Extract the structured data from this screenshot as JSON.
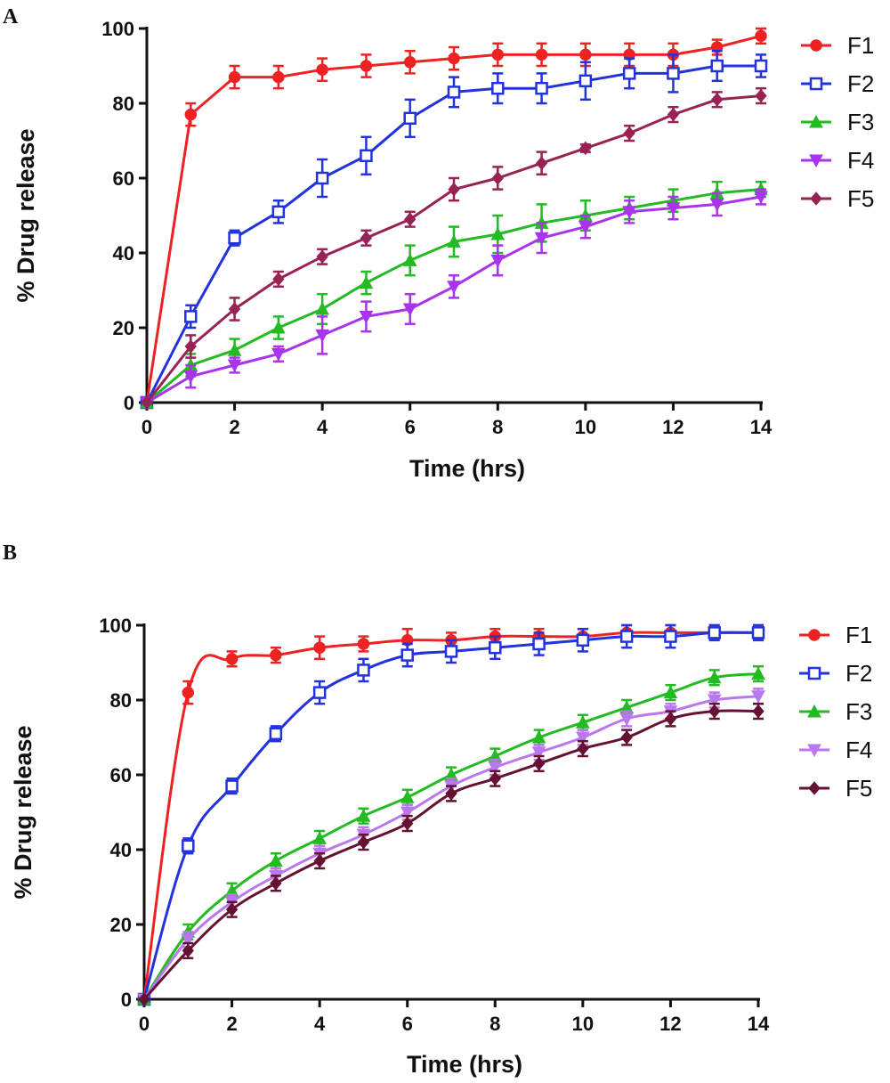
{
  "chart_data": [
    {
      "type": "line",
      "panel_label": "A",
      "xlabel": "Time (hrs)",
      "ylabel": "% Drug release",
      "xlim": [
        0,
        14
      ],
      "ylim": [
        0,
        100
      ],
      "xticks": [
        0,
        2,
        4,
        6,
        8,
        10,
        12,
        14
      ],
      "yticks": [
        0,
        20,
        40,
        60,
        80,
        100
      ],
      "legend_position": "right",
      "x": [
        0,
        1,
        2,
        3,
        4,
        5,
        6,
        7,
        8,
        9,
        10,
        11,
        12,
        13,
        14
      ],
      "series": [
        {
          "name": "F1",
          "color": "#ee2222",
          "marker": "circle-filled",
          "values": [
            0,
            77,
            87,
            87,
            89,
            90,
            91,
            92,
            93,
            93,
            93,
            93,
            93,
            95,
            98
          ],
          "errors": [
            0,
            3,
            3,
            3,
            3,
            3,
            3,
            3,
            3,
            3,
            3,
            3,
            3,
            2,
            2
          ]
        },
        {
          "name": "F2",
          "color": "#2233dd",
          "marker": "square-open",
          "values": [
            0,
            23,
            44,
            51,
            60,
            66,
            76,
            83,
            84,
            84,
            86,
            88,
            88,
            90,
            90
          ],
          "errors": [
            0,
            3,
            2,
            3,
            5,
            5,
            5,
            4,
            4,
            4,
            5,
            4,
            5,
            4,
            3
          ]
        },
        {
          "name": "F3",
          "color": "#22bb22",
          "marker": "triangle-up",
          "values": [
            0,
            10,
            14,
            20,
            25,
            32,
            38,
            43,
            45,
            48,
            50,
            52,
            54,
            56,
            57
          ],
          "errors": [
            0,
            3,
            3,
            3,
            4,
            3,
            4,
            4,
            5,
            5,
            4,
            3,
            3,
            3,
            2
          ]
        },
        {
          "name": "F4",
          "color": "#aa33ee",
          "marker": "triangle-down",
          "values": [
            0,
            7,
            10,
            13,
            18,
            23,
            25,
            31,
            38,
            44,
            47,
            51,
            52,
            53,
            55
          ],
          "errors": [
            0,
            3,
            2,
            2,
            5,
            4,
            4,
            3,
            4,
            4,
            3,
            3,
            3,
            3,
            2
          ]
        },
        {
          "name": "F5",
          "color": "#992255",
          "marker": "diamond",
          "values": [
            0,
            15,
            25,
            33,
            39,
            44,
            49,
            57,
            60,
            64,
            68,
            72,
            77,
            81,
            82
          ],
          "errors": [
            0,
            3,
            3,
            2,
            2,
            2,
            2,
            3,
            3,
            3,
            1,
            2,
            2,
            2,
            2
          ]
        }
      ]
    },
    {
      "type": "line",
      "panel_label": "B",
      "xlabel": "Time (hrs)",
      "ylabel": "% Drug release",
      "xlim": [
        0,
        14
      ],
      "ylim": [
        0,
        100
      ],
      "xticks": [
        0,
        2,
        4,
        6,
        8,
        10,
        12,
        14
      ],
      "yticks": [
        0,
        20,
        40,
        60,
        80,
        100
      ],
      "legend_position": "right",
      "x": [
        0,
        1,
        2,
        3,
        4,
        5,
        6,
        7,
        8,
        9,
        10,
        11,
        12,
        13,
        14
      ],
      "series": [
        {
          "name": "F1",
          "color": "#ee2222",
          "marker": "circle-filled",
          "values": [
            0,
            82,
            91,
            92,
            94,
            95,
            96,
            96,
            97,
            97,
            97,
            98,
            98,
            98,
            98
          ],
          "errors": [
            0,
            3,
            2,
            2,
            3,
            2,
            3,
            2,
            2,
            2,
            2,
            2,
            2,
            2,
            2
          ]
        },
        {
          "name": "F2",
          "color": "#2233dd",
          "marker": "square-open",
          "values": [
            0,
            41,
            57,
            71,
            82,
            88,
            92,
            93,
            94,
            95,
            96,
            97,
            97,
            98,
            98
          ],
          "errors": [
            0,
            2,
            2,
            2,
            3,
            3,
            3,
            3,
            3,
            3,
            3,
            3,
            3,
            2,
            2
          ]
        },
        {
          "name": "F3",
          "color": "#22bb22",
          "marker": "triangle-up",
          "values": [
            0,
            18,
            29,
            37,
            43,
            49,
            54,
            60,
            65,
            70,
            74,
            78,
            82,
            86,
            87
          ],
          "errors": [
            0,
            2,
            2,
            2,
            2,
            2,
            2,
            2,
            2,
            2,
            2,
            2,
            2,
            2,
            2
          ]
        },
        {
          "name": "F4",
          "color": "#bb77ee",
          "marker": "triangle-down",
          "values": [
            0,
            16,
            26,
            33,
            39,
            44,
            50,
            57,
            62,
            66,
            70,
            75,
            77,
            80,
            81
          ],
          "errors": [
            0,
            2,
            2,
            2,
            2,
            2,
            2,
            2,
            2,
            2,
            2,
            2,
            2,
            2,
            2
          ]
        },
        {
          "name": "F5",
          "color": "#661133",
          "marker": "diamond",
          "values": [
            0,
            13,
            24,
            31,
            37,
            42,
            47,
            55,
            59,
            63,
            67,
            70,
            75,
            77,
            77
          ],
          "errors": [
            0,
            2,
            2,
            2,
            2,
            2,
            2,
            2,
            2,
            2,
            2,
            2,
            2,
            2,
            2
          ]
        }
      ]
    }
  ]
}
